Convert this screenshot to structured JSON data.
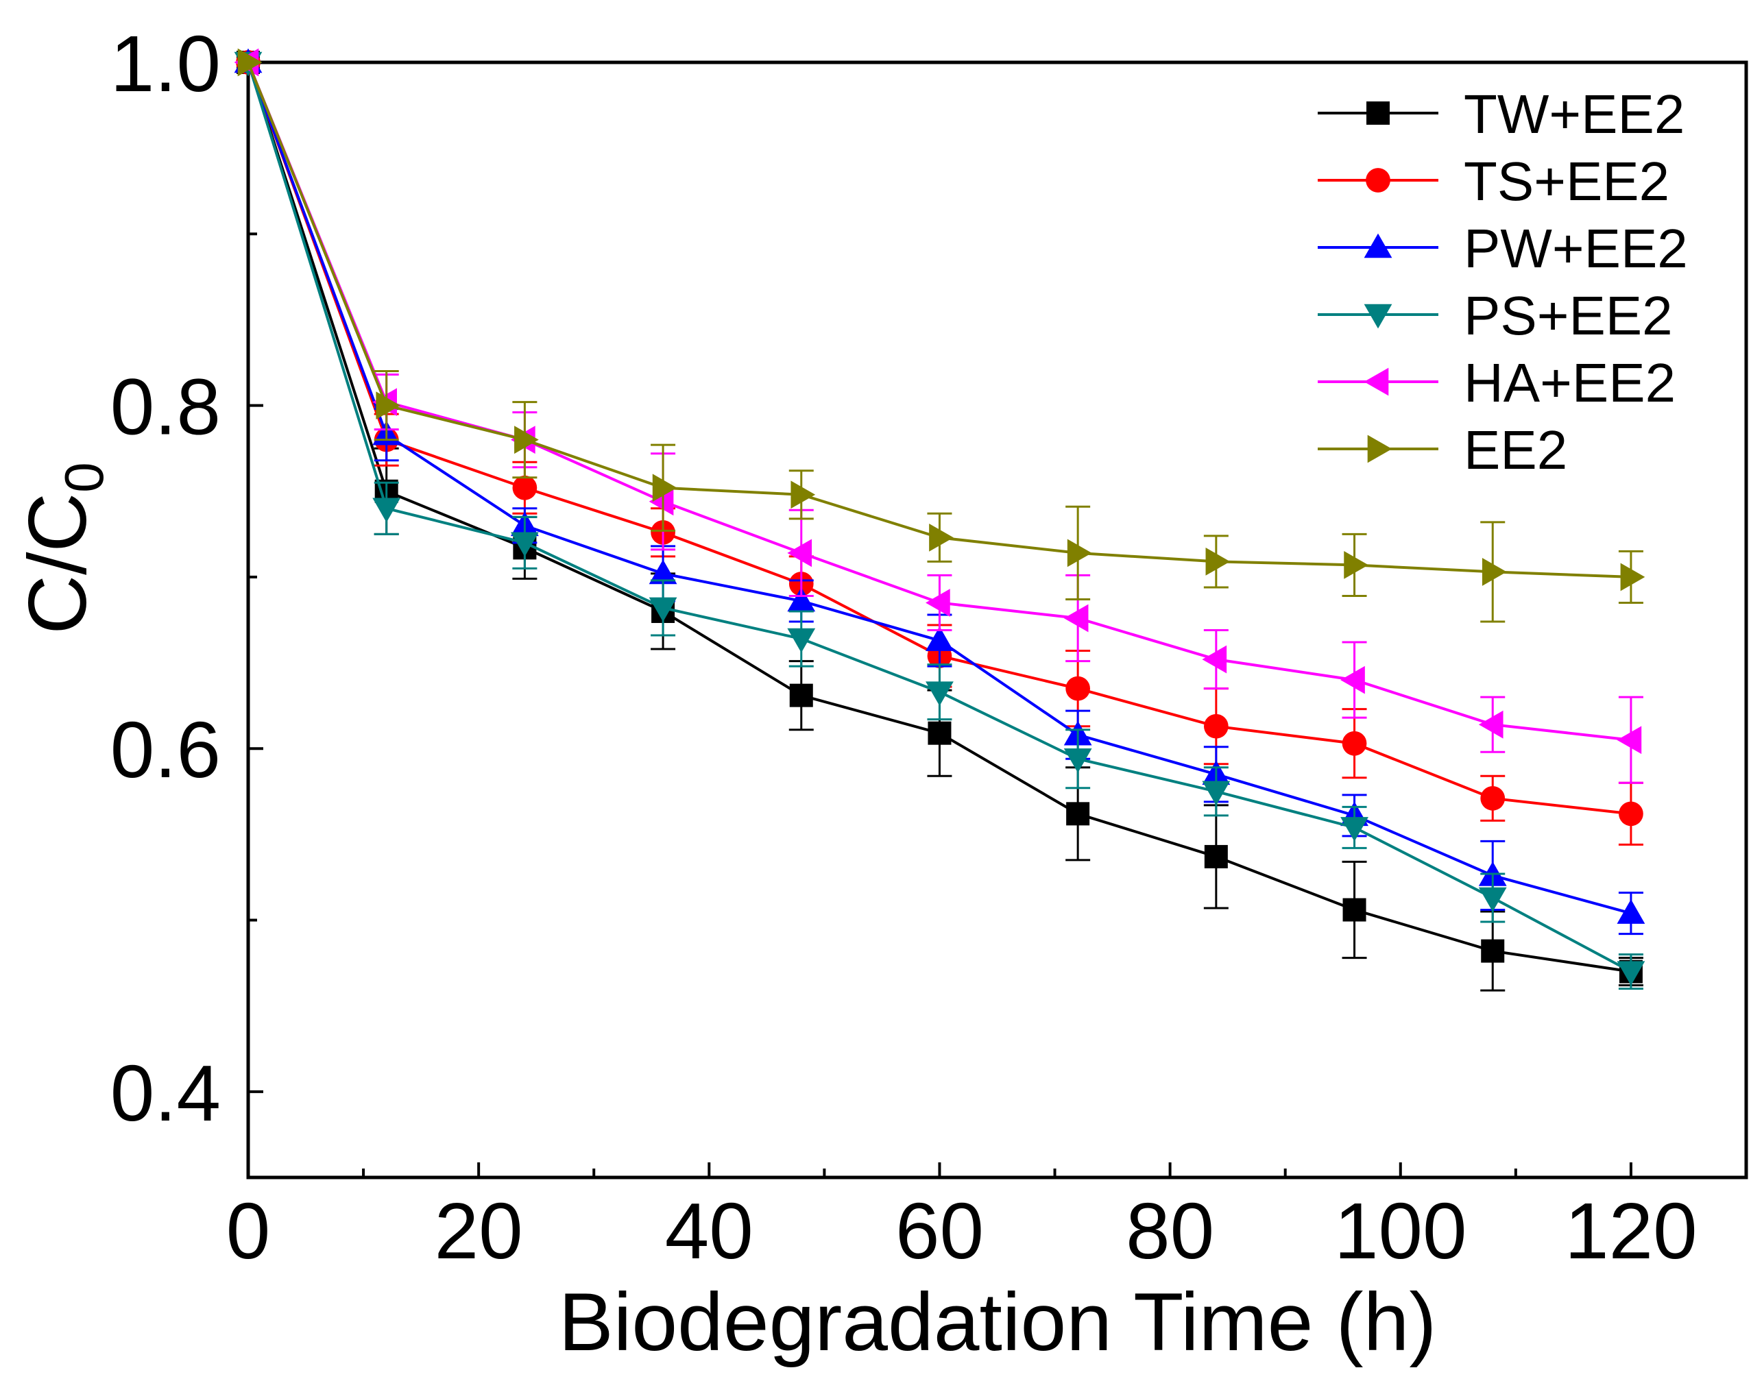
{
  "chart_data": {
    "type": "line",
    "xlabel": "Biodegradation Time (h)",
    "ylabel": "C/C",
    "ylabel_subscript": "0",
    "xlim": [
      0,
      130
    ],
    "ylim": [
      0.35,
      1.0
    ],
    "xticks": [
      0,
      20,
      40,
      60,
      80,
      100,
      120
    ],
    "xtick_labels": [
      "0",
      "20",
      "40",
      "60",
      "80",
      "100",
      "120"
    ],
    "yticks": [
      0.4,
      0.6,
      0.8,
      1.0
    ],
    "ytick_labels": [
      "0.4",
      "0.6",
      "0.8",
      "1.0"
    ],
    "legend_position": "top-right",
    "grid": false,
    "x": [
      0,
      12,
      24,
      36,
      48,
      60,
      72,
      84,
      96,
      108,
      120
    ],
    "series": [
      {
        "name": "TW+EE2",
        "color": "#000000",
        "marker": "square",
        "values": [
          1.0,
          0.75,
          0.717,
          0.68,
          0.631,
          0.609,
          0.562,
          0.537,
          0.506,
          0.482,
          0.47
        ],
        "errors": [
          0.0,
          0.025,
          0.018,
          0.022,
          0.02,
          0.025,
          0.027,
          0.03,
          0.028,
          0.023,
          0.008
        ]
      },
      {
        "name": "TS+EE2",
        "color": "#ff0000",
        "marker": "circle",
        "values": [
          1.0,
          0.78,
          0.752,
          0.726,
          0.696,
          0.654,
          0.635,
          0.613,
          0.603,
          0.571,
          0.562
        ],
        "errors": [
          0.0,
          0.015,
          0.015,
          0.014,
          0.016,
          0.018,
          0.022,
          0.022,
          0.02,
          0.013,
          0.018
        ]
      },
      {
        "name": "PW+EE2",
        "color": "#0000ff",
        "marker": "triangle-up",
        "values": [
          1.0,
          0.783,
          0.73,
          0.702,
          0.686,
          0.663,
          0.608,
          0.585,
          0.561,
          0.526,
          0.504
        ],
        "errors": [
          0.0,
          0.015,
          0.01,
          0.016,
          0.012,
          0.015,
          0.014,
          0.016,
          0.012,
          0.02,
          0.012
        ]
      },
      {
        "name": "PS+EE2",
        "color": "#008080",
        "marker": "triangle-down",
        "values": [
          1.0,
          0.74,
          0.72,
          0.682,
          0.664,
          0.633,
          0.594,
          0.575,
          0.554,
          0.513,
          0.47
        ],
        "errors": [
          0.0,
          0.015,
          0.015,
          0.016,
          0.016,
          0.016,
          0.017,
          0.014,
          0.012,
          0.014,
          0.01
        ]
      },
      {
        "name": "HA+EE2",
        "color": "#ff00ff",
        "marker": "triangle-left",
        "values": [
          1.0,
          0.802,
          0.78,
          0.744,
          0.714,
          0.685,
          0.676,
          0.652,
          0.64,
          0.614,
          0.605
        ],
        "errors": [
          0.0,
          0.016,
          0.016,
          0.028,
          0.025,
          0.016,
          0.025,
          0.017,
          0.022,
          0.016,
          0.025
        ]
      },
      {
        "name": "EE2",
        "color": "#808000",
        "marker": "triangle-right",
        "values": [
          1.0,
          0.8,
          0.78,
          0.752,
          0.748,
          0.723,
          0.714,
          0.709,
          0.707,
          0.703,
          0.7
        ],
        "errors": [
          0.0,
          0.02,
          0.022,
          0.025,
          0.014,
          0.014,
          0.027,
          0.015,
          0.018,
          0.029,
          0.015
        ]
      }
    ]
  }
}
